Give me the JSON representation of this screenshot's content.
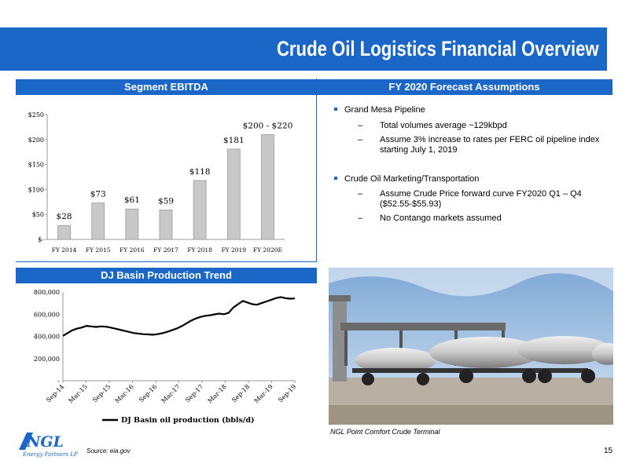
{
  "page": {
    "title": "Crude Oil Logistics Financial Overview",
    "page_number": "15",
    "source": "Source: eia.gov",
    "logo_text": "Energy Partners LP",
    "logo_mark": "NGL",
    "photo_caption": "NGL Point Comfort Crude Terminal"
  },
  "headers": {
    "ebitda": "Segment EBITDA",
    "forecast": "FY 2020 Forecast Assumptions",
    "dj": "DJ Basin Production Trend"
  },
  "forecast": {
    "b1": "Grand Mesa Pipeline",
    "b1_s1": "Total volumes average ~129kbpd",
    "b1_s2": "Assume 3% increase to rates per FERC oil pipeline index starting July 1, 2019",
    "b2": "Crude Oil Marketing/Transportation",
    "b2_s1": "Assume Crude Price forward curve FY2020 Q1 – Q4 ($52.55-$55.93)",
    "b2_s2": "No Contango markets assumed",
    "dash": "–"
  },
  "colors": {
    "accent": "#1a67c8",
    "bar": "#c8c8c8",
    "line": "#000000"
  },
  "chart_data": [
    {
      "type": "bar",
      "categories": [
        "FY 2014",
        "FY 2015",
        "FY 2016",
        "FY 2017",
        "FY 2018",
        "FY 2019",
        "FY 2020E"
      ],
      "values": [
        28,
        73,
        61,
        59,
        118,
        181,
        210
      ],
      "data_labels": [
        "$28",
        "$73",
        "$61",
        "$59",
        "$118",
        "$181",
        "$200 - $220"
      ],
      "y_ticks": [
        0,
        50,
        100,
        150,
        200,
        250
      ],
      "y_tick_labels": [
        "$-",
        "$50",
        "$100",
        "$150",
        "$200",
        "$250"
      ],
      "ylim": [
        0,
        250
      ],
      "grid": false
    },
    {
      "type": "line",
      "x_tick_labels": [
        "Sep-14",
        "Mar-15",
        "Sep-15",
        "Mar-16",
        "Sep-16",
        "Mar-17",
        "Sep-17",
        "Mar-18",
        "Sep-18",
        "Mar-19",
        "Sep-19"
      ],
      "y_ticks": [
        0,
        200000,
        400000,
        600000,
        800000
      ],
      "y_tick_labels": [
        "-",
        "200,000",
        "400,000",
        "600,000",
        "800,000"
      ],
      "ylim": [
        0,
        800000
      ],
      "legend": "bottom",
      "series": [
        {
          "name": "DJ Basin oil production (bbls/d)",
          "values": [
            405000,
            430000,
            455000,
            470000,
            480000,
            495000,
            490000,
            485000,
            490000,
            488000,
            480000,
            470000,
            460000,
            450000,
            440000,
            430000,
            425000,
            420000,
            418000,
            415000,
            420000,
            428000,
            440000,
            455000,
            470000,
            490000,
            515000,
            540000,
            560000,
            575000,
            585000,
            590000,
            598000,
            605000,
            600000,
            612000,
            660000,
            690000,
            720000,
            705000,
            690000,
            685000,
            700000,
            715000,
            730000,
            745000,
            755000,
            745000,
            740000,
            742000
          ]
        }
      ]
    }
  ]
}
